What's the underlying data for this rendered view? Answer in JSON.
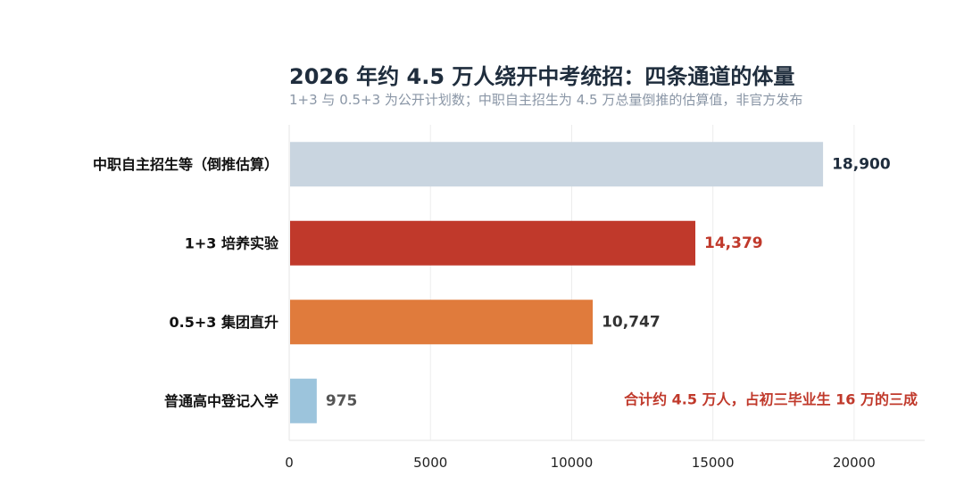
{
  "chart_data": {
    "type": "bar",
    "orientation": "horizontal",
    "title": "2026 年约 4.5 万人绕开中考统招：四条通道的体量",
    "subtitle": "1+3 与 0.5+3 为公开计划数；中职自主招生为 4.5 万总量倒推的估算值，非官方发布",
    "categories": [
      "中职自主招生等（倒推估算）",
      "1+3 培养实验",
      "0.5+3 集团直升",
      "普通高中登记入学"
    ],
    "values": [
      18900,
      14379,
      10747,
      975
    ],
    "value_labels": [
      "18,900",
      "14,379",
      "10,747",
      "975"
    ],
    "bar_colors": [
      "#c9d5e0",
      "#c0392b",
      "#e07b3c",
      "#9cc4dc"
    ],
    "value_label_colors": [
      "#1f2d3d",
      "#c0392b",
      "#333333",
      "#555555"
    ],
    "xlim": [
      0,
      22500
    ],
    "xticks": [
      0,
      5000,
      10000,
      15000,
      20000
    ],
    "grid": true,
    "annotation": "合计约 4.5 万人，占初三毕业生 16 万的三成",
    "annotation_color": "#c0392b"
  }
}
